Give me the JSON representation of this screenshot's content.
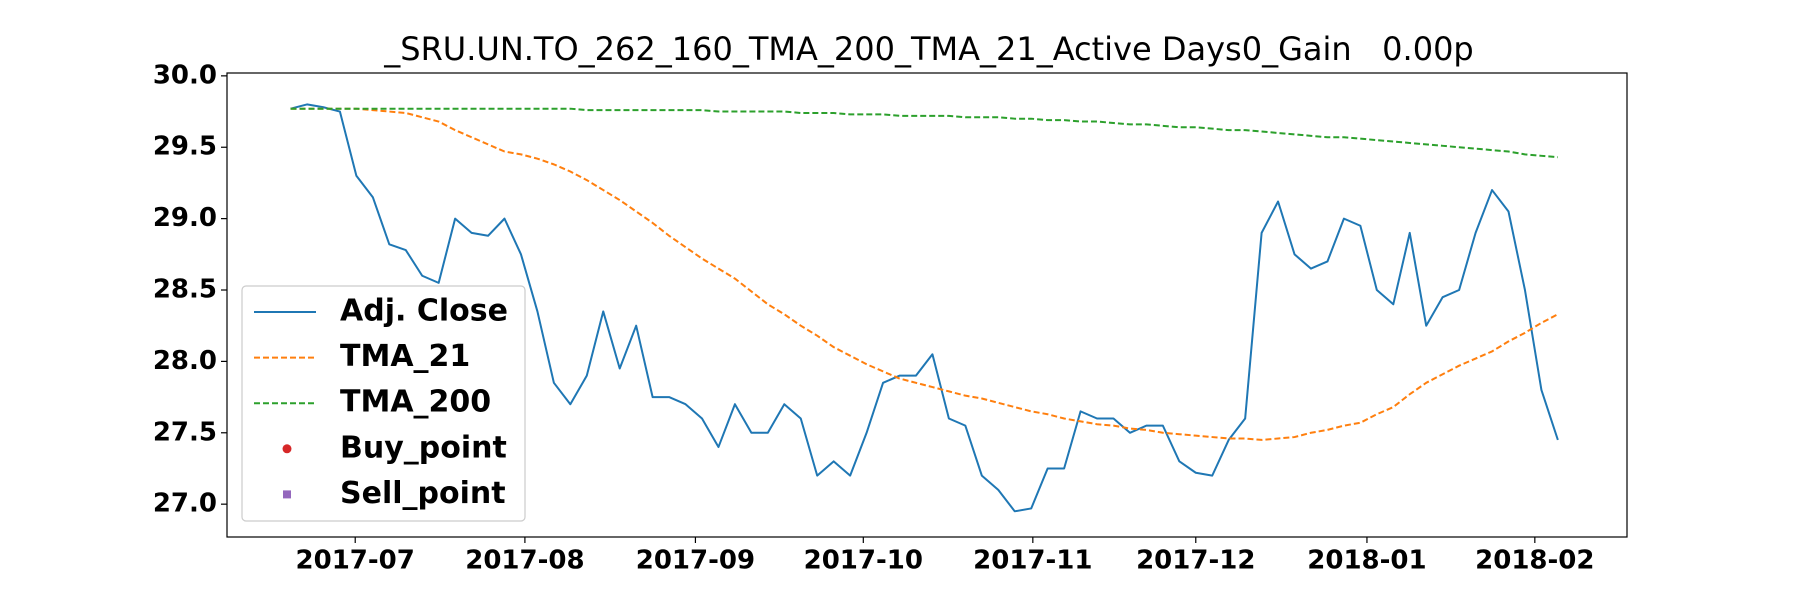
{
  "chart_data": {
    "type": "line",
    "title": "_SRU.UN.TO_262_160_TMA_200_TMA_21_Active Days0_Gain   0.00p",
    "xlim": [
      -3.86,
      81.2
    ],
    "xticks": [
      {
        "value": 3.93,
        "label": "2017-07"
      },
      {
        "value": 14.24,
        "label": "2017-08"
      },
      {
        "value": 24.6,
        "label": "2017-09"
      },
      {
        "value": 34.8,
        "label": "2017-10"
      },
      {
        "value": 45.1,
        "label": "2017-11"
      },
      {
        "value": 55.0,
        "label": "2017-12"
      },
      {
        "value": 65.4,
        "label": "2018-01"
      },
      {
        "value": 75.6,
        "label": "2018-02"
      }
    ],
    "ylim": [
      26.77,
      30.02
    ],
    "yticks": [
      {
        "value": 27.0,
        "label": "27.0"
      },
      {
        "value": 27.5,
        "label": "27.5"
      },
      {
        "value": 28.0,
        "label": "28.0"
      },
      {
        "value": 28.5,
        "label": "28.5"
      },
      {
        "value": 29.0,
        "label": "29.0"
      },
      {
        "value": 29.5,
        "label": "29.5"
      },
      {
        "value": 30.0,
        "label": "30.0"
      }
    ],
    "legend": "lower left",
    "series": [
      {
        "name": "Adj. Close",
        "color": "#1f77b4",
        "linestyle": "solid",
        "values": [
          29.77,
          29.8,
          29.78,
          29.75,
          29.3,
          29.15,
          28.82,
          28.78,
          28.6,
          28.55,
          29.0,
          28.9,
          28.88,
          29.0,
          28.75,
          28.35,
          27.85,
          27.7,
          27.9,
          28.35,
          27.95,
          28.25,
          27.75,
          27.75,
          27.7,
          27.6,
          27.4,
          27.7,
          27.5,
          27.5,
          27.7,
          27.6,
          27.2,
          27.3,
          27.2,
          27.5,
          27.85,
          27.9,
          27.9,
          28.05,
          27.6,
          27.55,
          27.2,
          27.1,
          26.95,
          26.97,
          27.25,
          27.25,
          27.65,
          27.6,
          27.6,
          27.5,
          27.55,
          27.55,
          27.3,
          27.22,
          27.2,
          27.45,
          27.6,
          28.9,
          29.12,
          28.75,
          28.65,
          28.7,
          29.0,
          28.95,
          28.5,
          28.4,
          28.9,
          28.25,
          28.45,
          28.5,
          28.9,
          29.2,
          29.05,
          28.5,
          27.8,
          27.45
        ]
      },
      {
        "name": "TMA_21",
        "color": "#ff7f0e",
        "linestyle": "dashed",
        "values": [
          29.77,
          29.77,
          29.77,
          29.77,
          29.77,
          29.76,
          29.75,
          29.74,
          29.71,
          29.68,
          29.62,
          29.57,
          29.52,
          29.47,
          29.45,
          29.42,
          29.38,
          29.33,
          29.27,
          29.2,
          29.13,
          29.05,
          28.97,
          28.88,
          28.8,
          28.72,
          28.65,
          28.58,
          28.49,
          28.4,
          28.33,
          28.25,
          28.18,
          28.1,
          28.04,
          27.98,
          27.93,
          27.88,
          27.85,
          27.82,
          27.79,
          27.76,
          27.74,
          27.71,
          27.68,
          27.65,
          27.63,
          27.6,
          27.58,
          27.56,
          27.55,
          27.53,
          27.52,
          27.5,
          27.49,
          27.48,
          27.47,
          27.46,
          27.46,
          27.45,
          27.46,
          27.47,
          27.5,
          27.52,
          27.55,
          27.57,
          27.63,
          27.68,
          27.77,
          27.85,
          27.91,
          27.97,
          28.02,
          28.07,
          28.14,
          28.2,
          28.27,
          28.33
        ]
      },
      {
        "name": "TMA_200",
        "color": "#2ca02c",
        "linestyle": "dashed",
        "values": [
          29.77,
          29.77,
          29.77,
          29.77,
          29.77,
          29.77,
          29.77,
          29.77,
          29.77,
          29.77,
          29.77,
          29.77,
          29.77,
          29.77,
          29.77,
          29.77,
          29.77,
          29.77,
          29.76,
          29.76,
          29.76,
          29.76,
          29.76,
          29.76,
          29.76,
          29.76,
          29.75,
          29.75,
          29.75,
          29.75,
          29.75,
          29.74,
          29.74,
          29.74,
          29.73,
          29.73,
          29.73,
          29.72,
          29.72,
          29.72,
          29.72,
          29.71,
          29.71,
          29.71,
          29.7,
          29.7,
          29.69,
          29.69,
          29.68,
          29.68,
          29.67,
          29.66,
          29.66,
          29.65,
          29.64,
          29.64,
          29.63,
          29.62,
          29.62,
          29.61,
          29.6,
          29.59,
          29.58,
          29.57,
          29.57,
          29.56,
          29.55,
          29.54,
          29.53,
          29.52,
          29.51,
          29.5,
          29.49,
          29.48,
          29.47,
          29.45,
          29.44,
          29.43
        ]
      },
      {
        "name": "Buy_point",
        "color": "#d62728",
        "marker": "circle",
        "values": [
          null,
          null,
          null,
          null,
          null,
          null,
          null,
          null,
          null,
          null,
          null,
          null,
          null,
          null,
          null,
          null,
          null,
          null,
          null,
          null,
          null,
          null,
          null,
          null,
          null,
          null,
          null,
          null,
          null,
          null,
          null,
          null,
          null,
          null,
          null,
          null,
          null,
          null,
          null,
          null,
          null,
          null,
          null,
          null,
          null,
          null,
          null,
          null,
          null,
          null,
          null,
          null,
          null,
          null,
          null,
          null,
          null,
          null,
          null,
          null,
          null,
          null,
          null,
          null,
          null,
          null,
          null,
          null,
          null,
          null,
          null,
          null,
          null,
          null,
          null,
          null,
          null,
          null
        ]
      },
      {
        "name": "Sell_point",
        "color": "#9467bd",
        "marker": "square",
        "values": [
          null,
          null,
          null,
          null,
          null,
          null,
          null,
          null,
          null,
          null,
          null,
          null,
          null,
          null,
          null,
          null,
          null,
          null,
          null,
          null,
          null,
          null,
          null,
          null,
          null,
          null,
          null,
          null,
          null,
          null,
          null,
          null,
          null,
          null,
          null,
          null,
          null,
          null,
          null,
          null,
          null,
          null,
          null,
          null,
          null,
          null,
          null,
          null,
          null,
          null,
          null,
          null,
          null,
          null,
          null,
          null,
          null,
          null,
          null,
          null,
          null,
          null,
          null,
          null,
          null,
          null,
          null,
          null,
          null,
          null,
          null,
          null,
          null,
          null,
          null,
          null,
          null,
          null
        ]
      }
    ]
  }
}
